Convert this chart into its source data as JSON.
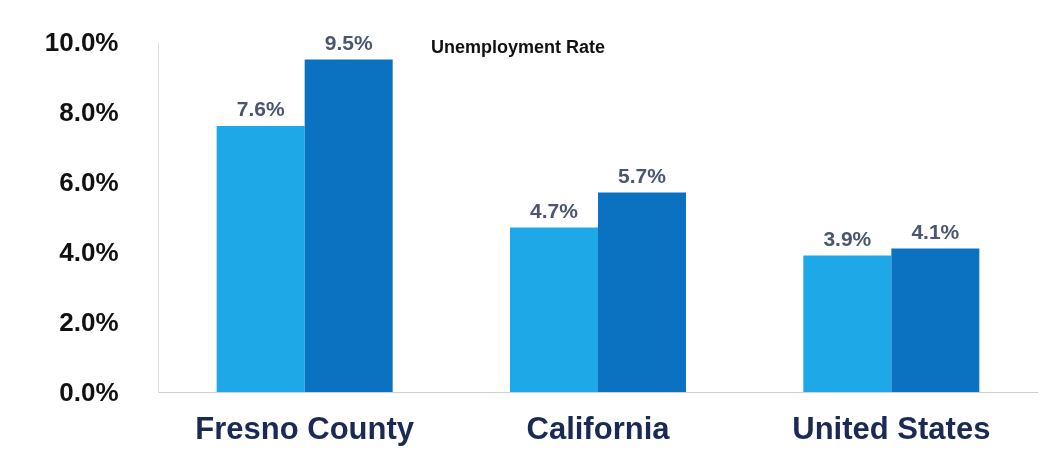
{
  "chart_data": {
    "type": "bar",
    "title": "Unemployment Rate",
    "categories": [
      "Fresno County",
      "California",
      "United States"
    ],
    "series": [
      {
        "color": "#1ea8e8",
        "values": [
          7.6,
          4.7,
          3.9
        ],
        "value_labels": [
          "7.6%",
          "4.7%",
          "3.9%"
        ]
      },
      {
        "color": "#0b72c2",
        "values": [
          9.5,
          5.7,
          4.1
        ],
        "value_labels": [
          "9.5%",
          "5.7%",
          "4.1%"
        ]
      }
    ],
    "ylim": [
      0,
      10
    ],
    "yticks": [
      {
        "value": 0,
        "label": "0.0%"
      },
      {
        "value": 2,
        "label": "2.0%"
      },
      {
        "value": 4,
        "label": "4.0%"
      },
      {
        "value": 6,
        "label": "6.0%"
      },
      {
        "value": 8,
        "label": "8.0%"
      },
      {
        "value": 10,
        "label": "10.0%"
      }
    ],
    "grid": false
  }
}
